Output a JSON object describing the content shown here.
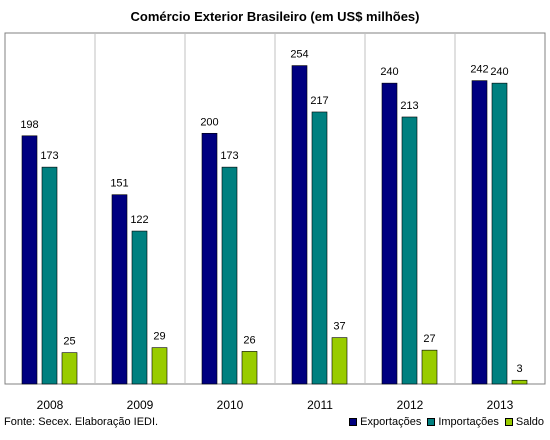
{
  "chart_data": {
    "type": "bar",
    "title": "Comércio Exterior Brasileiro (em US$ milhões)",
    "categories": [
      "2008",
      "2009",
      "2010",
      "2011",
      "2012",
      "2013"
    ],
    "series": [
      {
        "name": "Exportações",
        "color": "#000080",
        "values": [
          198,
          151,
          200,
          254,
          240,
          242
        ]
      },
      {
        "name": "Importações",
        "color": "#008080",
        "values": [
          173,
          122,
          173,
          217,
          213,
          240
        ]
      },
      {
        "name": "Saldo",
        "color": "#99CC00",
        "values": [
          25,
          29,
          26,
          37,
          27,
          3
        ]
      }
    ],
    "ylim": [
      0,
      280
    ],
    "grid": "vertical",
    "legend_position": "bottom-right"
  },
  "source_note": "Fonte: Secex. Elaboração IEDI."
}
